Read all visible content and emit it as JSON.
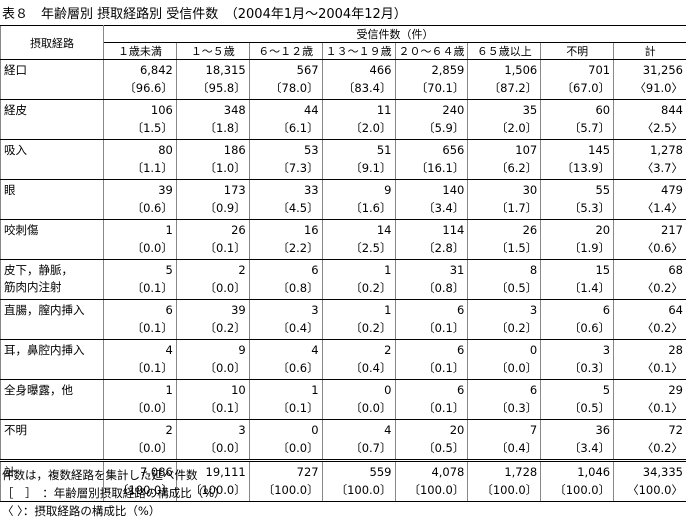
{
  "title": "表８　年齢層別 摂取経路別 受信件数　（2004年1月～2004年12月）",
  "table": {
    "header": {
      "row_label": "摂取経路",
      "group": "受信件数（件）",
      "columns": [
        "１歳未満",
        "１～５歳",
        "６～１２歳",
        "１３～１９歳",
        "２０～６４歳",
        "６５歳以上",
        "不明",
        "計"
      ]
    },
    "rows": [
      {
        "label": [
          "経口"
        ],
        "cells": [
          {
            "count": "6,842",
            "share": "〔96.6〕"
          },
          {
            "count": "18,315",
            "share": "〔95.8〕"
          },
          {
            "count": "567",
            "share": "〔78.0〕"
          },
          {
            "count": "466",
            "share": "〔83.4〕"
          },
          {
            "count": "2,859",
            "share": "〔70.1〕"
          },
          {
            "count": "1,506",
            "share": "〔87.2〕"
          },
          {
            "count": "701",
            "share": "〔67.0〕"
          },
          {
            "count": "31,256",
            "share": "〈91.0〉"
          }
        ]
      },
      {
        "label": [
          "経皮"
        ],
        "cells": [
          {
            "count": "106",
            "share": "〔1.5〕"
          },
          {
            "count": "348",
            "share": "〔1.8〕"
          },
          {
            "count": "44",
            "share": "〔6.1〕"
          },
          {
            "count": "11",
            "share": "〔2.0〕"
          },
          {
            "count": "240",
            "share": "〔5.9〕"
          },
          {
            "count": "35",
            "share": "〔2.0〕"
          },
          {
            "count": "60",
            "share": "〔5.7〕"
          },
          {
            "count": "844",
            "share": "〈2.5〉"
          }
        ]
      },
      {
        "label": [
          "吸入"
        ],
        "cells": [
          {
            "count": "80",
            "share": "〔1.1〕"
          },
          {
            "count": "186",
            "share": "〔1.0〕"
          },
          {
            "count": "53",
            "share": "〔7.3〕"
          },
          {
            "count": "51",
            "share": "〔9.1〕"
          },
          {
            "count": "656",
            "share": "〔16.1〕"
          },
          {
            "count": "107",
            "share": "〔6.2〕"
          },
          {
            "count": "145",
            "share": "〔13.9〕"
          },
          {
            "count": "1,278",
            "share": "〈3.7〉"
          }
        ]
      },
      {
        "label": [
          "眼"
        ],
        "cells": [
          {
            "count": "39",
            "share": "〔0.6〕"
          },
          {
            "count": "173",
            "share": "〔0.9〕"
          },
          {
            "count": "33",
            "share": "〔4.5〕"
          },
          {
            "count": "9",
            "share": "〔1.6〕"
          },
          {
            "count": "140",
            "share": "〔3.4〕"
          },
          {
            "count": "30",
            "share": "〔1.7〕"
          },
          {
            "count": "55",
            "share": "〔5.3〕"
          },
          {
            "count": "479",
            "share": "〈1.4〉"
          }
        ]
      },
      {
        "label": [
          "咬刺傷"
        ],
        "cells": [
          {
            "count": "1",
            "share": "〔0.0〕"
          },
          {
            "count": "26",
            "share": "〔0.1〕"
          },
          {
            "count": "16",
            "share": "〔2.2〕"
          },
          {
            "count": "14",
            "share": "〔2.5〕"
          },
          {
            "count": "114",
            "share": "〔2.8〕"
          },
          {
            "count": "26",
            "share": "〔1.5〕"
          },
          {
            "count": "20",
            "share": "〔1.9〕"
          },
          {
            "count": "217",
            "share": "〈0.6〉"
          }
        ]
      },
      {
        "label": [
          "皮下，静脈，",
          "筋肉内注射"
        ],
        "cells": [
          {
            "count": "5",
            "share": "〔0.1〕"
          },
          {
            "count": "2",
            "share": "〔0.0〕"
          },
          {
            "count": "6",
            "share": "〔0.8〕"
          },
          {
            "count": "1",
            "share": "〔0.2〕"
          },
          {
            "count": "31",
            "share": "〔0.8〕"
          },
          {
            "count": "8",
            "share": "〔0.5〕"
          },
          {
            "count": "15",
            "share": "〔1.4〕"
          },
          {
            "count": "68",
            "share": "〈0.2〉"
          }
        ]
      },
      {
        "label": [
          "直腸，膣内挿入"
        ],
        "cells": [
          {
            "count": "6",
            "share": "〔0.1〕"
          },
          {
            "count": "39",
            "share": "〔0.2〕"
          },
          {
            "count": "3",
            "share": "〔0.4〕"
          },
          {
            "count": "1",
            "share": "〔0.2〕"
          },
          {
            "count": "6",
            "share": "〔0.1〕"
          },
          {
            "count": "3",
            "share": "〔0.2〕"
          },
          {
            "count": "6",
            "share": "〔0.6〕"
          },
          {
            "count": "64",
            "share": "〈0.2〉"
          }
        ]
      },
      {
        "label": [
          "耳，鼻腔内挿入"
        ],
        "cells": [
          {
            "count": "4",
            "share": "〔0.1〕"
          },
          {
            "count": "9",
            "share": "〔0.0〕"
          },
          {
            "count": "4",
            "share": "〔0.6〕"
          },
          {
            "count": "2",
            "share": "〔0.4〕"
          },
          {
            "count": "6",
            "share": "〔0.1〕"
          },
          {
            "count": "0",
            "share": "〔0.0〕"
          },
          {
            "count": "3",
            "share": "〔0.3〕"
          },
          {
            "count": "28",
            "share": "〈0.1〉"
          }
        ]
      },
      {
        "label": [
          "全身曝露，他"
        ],
        "cells": [
          {
            "count": "1",
            "share": "〔0.0〕"
          },
          {
            "count": "10",
            "share": "〔0.1〕"
          },
          {
            "count": "1",
            "share": "〔0.1〕"
          },
          {
            "count": "0",
            "share": "〔0.0〕"
          },
          {
            "count": "6",
            "share": "〔0.1〕"
          },
          {
            "count": "6",
            "share": "〔0.3〕"
          },
          {
            "count": "5",
            "share": "〔0.5〕"
          },
          {
            "count": "29",
            "share": "〈0.1〉"
          }
        ]
      },
      {
        "label": [
          "不明"
        ],
        "cells": [
          {
            "count": "2",
            "share": "〔0.0〕"
          },
          {
            "count": "3",
            "share": "〔0.0〕"
          },
          {
            "count": "0",
            "share": "〔0.0〕"
          },
          {
            "count": "4",
            "share": "〔0.7〕"
          },
          {
            "count": "20",
            "share": "〔0.5〕"
          },
          {
            "count": "7",
            "share": "〔0.4〕"
          },
          {
            "count": "36",
            "share": "〔3.4〕"
          },
          {
            "count": "72",
            "share": "〈0.2〉"
          }
        ]
      },
      {
        "label": [
          "計"
        ],
        "cells": [
          {
            "count": "7,086",
            "share": "〔100.0〕"
          },
          {
            "count": "19,111",
            "share": "〔100.0〕"
          },
          {
            "count": "727",
            "share": "〔100.0〕"
          },
          {
            "count": "559",
            "share": "〔100.0〕"
          },
          {
            "count": "4,078",
            "share": "〔100.0〕"
          },
          {
            "count": "1,728",
            "share": "〔100.0〕"
          },
          {
            "count": "1,046",
            "share": "〔100.0〕"
          },
          {
            "count": "34,335",
            "share": "〈100.0〉"
          }
        ]
      }
    ]
  },
  "notes": [
    "件数は，複数経路を集計した延べ件数",
    "［　］　：年齢層別摂取経路の構成比（%）",
    "〈 〉：摂取経路の構成比（%）"
  ]
}
